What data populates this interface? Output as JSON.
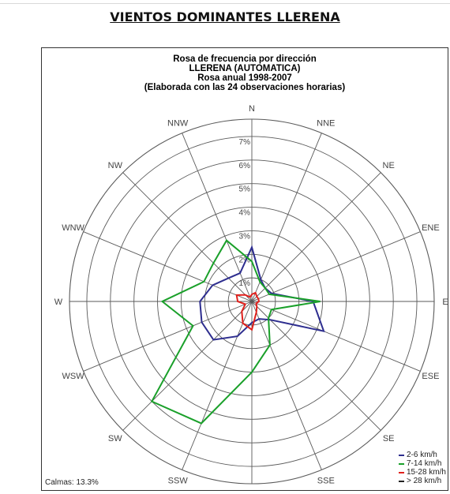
{
  "heading": "VIENTOS DOMINANTES LLERENA",
  "chart_data": {
    "type": "radar",
    "title_lines": [
      "Rosa de frecuencia por dirección",
      "LLERENA (AUTOMATICA)",
      "Rosa anual 1998-2007",
      "(Elaborada con las 24 observaciones horarias)"
    ],
    "directions": [
      "N",
      "NNE",
      "NE",
      "ENE",
      "E",
      "ESE",
      "SE",
      "SSE",
      "S",
      "SSW",
      "SW",
      "WSW",
      "W",
      "WNW",
      "NW",
      "NNW"
    ],
    "ring_labels": [
      "1%",
      "2%",
      "3%",
      "4%",
      "5%",
      "6%",
      "7%"
    ],
    "rmax": 7,
    "series": [
      {
        "name": "2-6 km/h",
        "color": "#2e2e8f",
        "values": [
          2.3,
          1.0,
          0.8,
          0.9,
          2.6,
          3.3,
          1.1,
          0.8,
          0.9,
          1.6,
          2.3,
          2.3,
          2.2,
          1.8,
          1.4,
          1.3
        ]
      },
      {
        "name": "7-14 km/h",
        "color": "#1aa02a",
        "values": [
          1.7,
          0.9,
          0.8,
          0.8,
          2.9,
          0.9,
          1.0,
          2.0,
          3.0,
          5.6,
          6.0,
          2.7,
          3.8,
          2.2,
          2.3,
          2.8
        ]
      },
      {
        "name": "15-28 km/h",
        "color": "#e0201c",
        "values": [
          0.3,
          0.4,
          0.3,
          0.3,
          0.3,
          0.2,
          0.3,
          0.5,
          1.2,
          1.0,
          0.6,
          0.3,
          0.6,
          0.7,
          0.4,
          0.2
        ]
      },
      {
        "name": "> 28 km/h",
        "color": "#222222",
        "values": [
          0.0,
          0.0,
          0.0,
          0.0,
          0.0,
          0.0,
          0.0,
          0.0,
          0.0,
          0.0,
          0.0,
          0.0,
          0.0,
          0.0,
          0.0,
          0.0
        ]
      }
    ],
    "calmas": "Calmas: 13.3%",
    "legend_position": "bottom-right",
    "grid": true
  }
}
